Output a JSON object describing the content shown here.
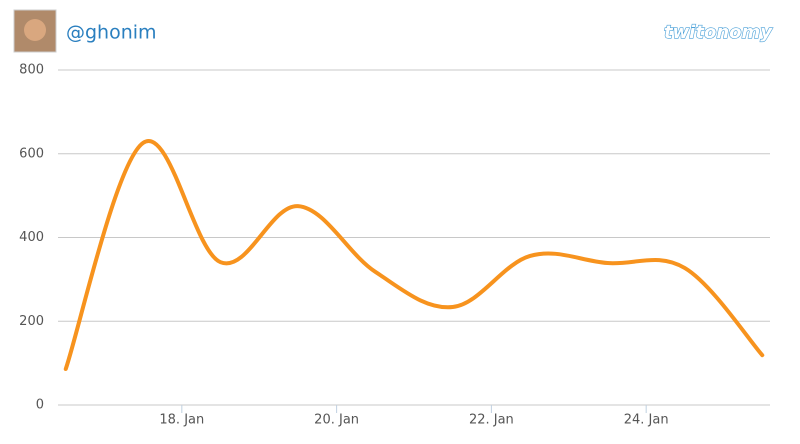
{
  "header": {
    "username": "@ghonim",
    "logo": "twitonomy"
  },
  "chart_data": {
    "type": "line",
    "x": [
      16.5,
      17.5,
      18.5,
      19.5,
      20.5,
      21.5,
      22.5,
      23.5,
      24.5,
      25.5
    ],
    "values": [
      86,
      626,
      341,
      475,
      318,
      234,
      356,
      339,
      327,
      119
    ],
    "color": "#f7931e",
    "xlim": [
      16.4,
      25.6
    ],
    "xticks": [
      {
        "value": 18,
        "label": "18. Jan"
      },
      {
        "value": 20,
        "label": "20. Jan"
      },
      {
        "value": 22,
        "label": "22. Jan"
      },
      {
        "value": 24,
        "label": "24. Jan"
      }
    ],
    "ylim": [
      0,
      800
    ],
    "yticks": [
      0,
      200,
      400,
      600,
      800
    ],
    "grid": true
  }
}
